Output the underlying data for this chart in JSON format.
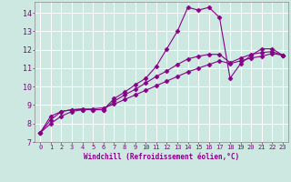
{
  "xlabel": "Windchill (Refroidissement éolien,°C)",
  "background_color": "#cce8e0",
  "grid_color": "#ffffff",
  "line_color": "#880088",
  "xlim": [
    -0.5,
    23.5
  ],
  "ylim": [
    7,
    14.6
  ],
  "xticks": [
    0,
    1,
    2,
    3,
    4,
    5,
    6,
    7,
    8,
    9,
    10,
    11,
    12,
    13,
    14,
    15,
    16,
    17,
    18,
    19,
    20,
    21,
    22,
    23
  ],
  "yticks": [
    7,
    8,
    9,
    10,
    11,
    12,
    13,
    14
  ],
  "line1_x": [
    0,
    1,
    2,
    3,
    4,
    5,
    6,
    7,
    8,
    9,
    10,
    11,
    12,
    13,
    14,
    15,
    16,
    17,
    18,
    19,
    20,
    21,
    22,
    23
  ],
  "line1_y": [
    7.5,
    8.4,
    8.65,
    8.75,
    8.75,
    8.75,
    8.75,
    9.35,
    9.7,
    10.1,
    10.45,
    11.1,
    12.05,
    13.0,
    14.3,
    14.15,
    14.3,
    13.75,
    10.45,
    11.25,
    11.7,
    12.05,
    12.05,
    11.7
  ],
  "line2_x": [
    0,
    1,
    2,
    3,
    4,
    5,
    6,
    7,
    8,
    9,
    10,
    11,
    12,
    13,
    14,
    15,
    16,
    17,
    18,
    19,
    20,
    21,
    22,
    23
  ],
  "line2_y": [
    7.5,
    8.2,
    8.65,
    8.75,
    8.8,
    8.75,
    8.75,
    9.2,
    9.55,
    9.85,
    10.2,
    10.55,
    10.85,
    11.2,
    11.5,
    11.65,
    11.75,
    11.75,
    11.3,
    11.55,
    11.75,
    11.85,
    11.9,
    11.7
  ],
  "line3_x": [
    0,
    1,
    2,
    3,
    4,
    5,
    6,
    7,
    8,
    9,
    10,
    11,
    12,
    13,
    14,
    15,
    16,
    17,
    18,
    19,
    20,
    21,
    22,
    23
  ],
  "line3_y": [
    7.5,
    8.0,
    8.4,
    8.65,
    8.75,
    8.8,
    8.85,
    9.05,
    9.3,
    9.55,
    9.8,
    10.05,
    10.3,
    10.55,
    10.8,
    11.0,
    11.2,
    11.4,
    11.25,
    11.4,
    11.55,
    11.65,
    11.8,
    11.7
  ],
  "marker": "D",
  "markersize": 2.5,
  "linewidth": 0.8
}
